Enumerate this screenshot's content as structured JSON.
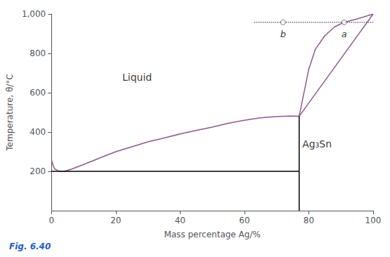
{
  "chart_data": {
    "type": "line",
    "xlabel": "Mass percentage Ag/%",
    "ylabel": "Temperature, θ/°C",
    "xlim": [
      0,
      100
    ],
    "ylim": [
      0,
      1000
    ],
    "xticks": [
      0,
      20,
      40,
      60,
      80,
      100
    ],
    "yticks": [
      200,
      400,
      600,
      800,
      1000
    ],
    "grid": false,
    "series": [
      {
        "color": "#8B5A8B",
        "x": [
          0,
          0.5,
          1,
          2,
          3,
          4,
          6,
          10,
          15,
          20,
          25,
          30,
          35,
          40,
          45,
          50,
          55,
          60,
          65,
          70,
          74,
          77
        ],
        "values": [
          260,
          230,
          213,
          203,
          200,
          201,
          210,
          235,
          268,
          300,
          325,
          350,
          370,
          390,
          408,
          425,
          445,
          460,
          472,
          479,
          481,
          480
        ]
      },
      {
        "color": "#8B5A8B",
        "x": [
          77,
          100
        ],
        "values": [
          480,
          1000
        ]
      },
      {
        "color": "#8B5A8B",
        "x": [
          77,
          78,
          79,
          80,
          82,
          85,
          88,
          91,
          95,
          100
        ],
        "values": [
          480,
          560,
          640,
          720,
          820,
          890,
          935,
          958,
          975,
          1000
        ]
      },
      {
        "color": "#000000",
        "x": [
          0,
          77
        ],
        "values": [
          200,
          200
        ]
      },
      {
        "color": "#000000",
        "x": [
          77,
          77
        ],
        "values": [
          0,
          480
        ]
      },
      {
        "color": "#666666",
        "line_style": "dotted",
        "x": [
          63,
          100
        ],
        "values": [
          958,
          958
        ]
      },
      {
        "type": "scatter",
        "marker": "circle",
        "color": "#555555",
        "x": [
          72,
          91
        ],
        "values": [
          958,
          958
        ],
        "labels": [
          "b",
          "a"
        ]
      }
    ],
    "annotations": [
      {
        "text": "Liquid",
        "x": 22,
        "y": 680
      },
      {
        "text": "Ag₃Sn",
        "x": 78,
        "y": 340
      }
    ],
    "caption": "Fig. 6.40",
    "caption_color": "#1F5EBF"
  }
}
